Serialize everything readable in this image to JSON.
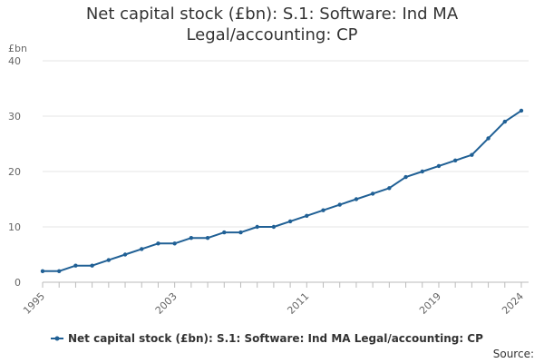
{
  "chart_data": {
    "type": "line",
    "title_line1": "Net capital stock (£bn): S.1: Software: Ind MA",
    "title_line2": "Legal/accounting: CP",
    "ylabel": "£bn",
    "xlabel": "",
    "ylim": [
      0,
      40
    ],
    "yticks": [
      "0",
      "10",
      "20",
      "30",
      "40"
    ],
    "xticks": [
      "1995",
      "2003",
      "2011",
      "2019",
      "2024"
    ],
    "x": [
      1995,
      1996,
      1997,
      1998,
      1999,
      2000,
      2001,
      2002,
      2003,
      2004,
      2005,
      2006,
      2007,
      2008,
      2009,
      2010,
      2011,
      2012,
      2013,
      2014,
      2015,
      2016,
      2017,
      2018,
      2019,
      2020,
      2021,
      2022,
      2023,
      2024
    ],
    "series": [
      {
        "name": "Net capital stock (£bn): S.1: Software: Ind MA Legal/accounting: CP",
        "color": "#206095",
        "values": [
          2,
          2,
          3,
          3,
          4,
          5,
          6,
          7,
          7,
          8,
          8,
          9,
          9,
          10,
          10,
          11,
          12,
          13,
          14,
          15,
          16,
          17,
          19,
          20,
          21,
          22,
          23,
          26,
          29,
          31
        ]
      }
    ],
    "grid": true,
    "legend": "bottom"
  },
  "footer": {
    "source": "Source:"
  }
}
